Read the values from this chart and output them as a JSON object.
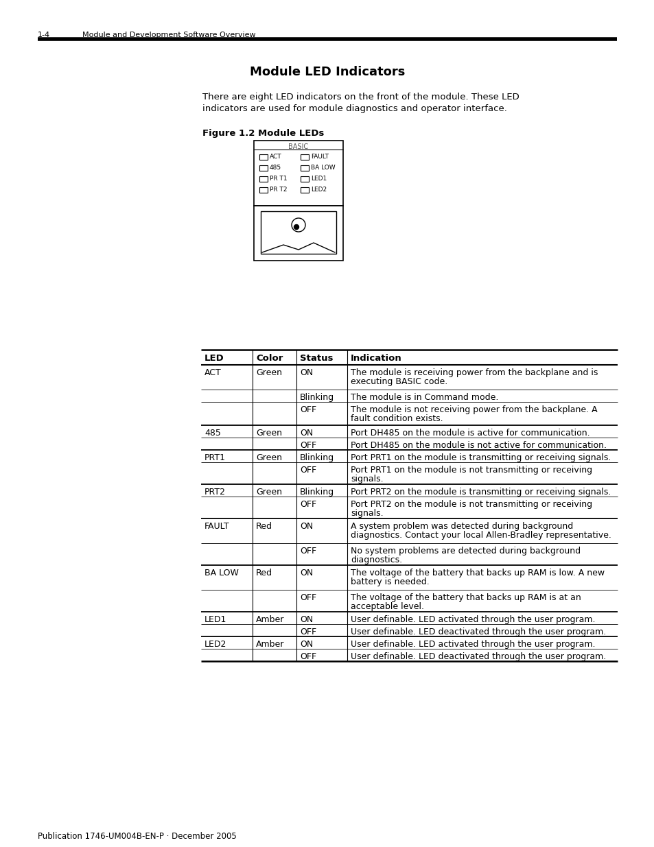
{
  "page_header_number": "1-4",
  "page_header_text": "Module and Development Software Overview",
  "section_title": "Module LED Indicators",
  "intro_text_1": "There are eight LED indicators on the front of the module. These LED",
  "intro_text_2": "indicators are used for module diagnostics and operator interface.",
  "figure_label": "Figure 1.2 Module LEDs",
  "footer_text": "Publication 1746-UM004B-EN-P · December 2005",
  "table_headers": [
    "LED",
    "Color",
    "Status",
    "Indication"
  ],
  "table_rows": [
    [
      "ACT",
      "Green",
      "ON",
      "The module is receiving power from the backplane and is\nexecuting BASIC code."
    ],
    [
      "",
      "",
      "Blinking",
      "The module is in Command mode."
    ],
    [
      "",
      "",
      "OFF",
      "The module is not receiving power from the backplane. A\nfault condition exists."
    ],
    [
      "485",
      "Green",
      "ON",
      "Port DH485 on the module is active for communication."
    ],
    [
      "",
      "",
      "OFF",
      "Port DH485 on the module is not active for communication."
    ],
    [
      "PRT1",
      "Green",
      "Blinking",
      "Port PRT1 on the module is transmitting or receiving signals."
    ],
    [
      "",
      "",
      "OFF",
      "Port PRT1 on the module is not transmitting or receiving\nsignals."
    ],
    [
      "PRT2",
      "Green",
      "Blinking",
      "Port PRT2 on the module is transmitting or receiving signals."
    ],
    [
      "",
      "",
      "OFF",
      "Port PRT2 on the module is not transmitting or receiving\nsignals."
    ],
    [
      "FAULT",
      "Red",
      "ON",
      "A system problem was detected during background\ndiagnostics. Contact your local Allen-Bradley representative."
    ],
    [
      "",
      "",
      "OFF",
      "No system problems are detected during background\ndiagnostics."
    ],
    [
      "BA LOW",
      "Red",
      "ON",
      "The voltage of the battery that backs up RAM is low. A new\nbattery is needed."
    ],
    [
      "",
      "",
      "OFF",
      "The voltage of the battery that backs up RAM is at an\nacceptable level."
    ],
    [
      "LED1",
      "Amber",
      "ON",
      "User definable. LED activated through the user program."
    ],
    [
      "",
      "",
      "OFF",
      "User definable. LED deactivated through the user program."
    ],
    [
      "LED2",
      "Amber",
      "ON",
      "User definable. LED activated through the user program."
    ],
    [
      "",
      "",
      "OFF",
      "User definable. LED deactivated through the user program."
    ]
  ],
  "background_color": "#ffffff"
}
